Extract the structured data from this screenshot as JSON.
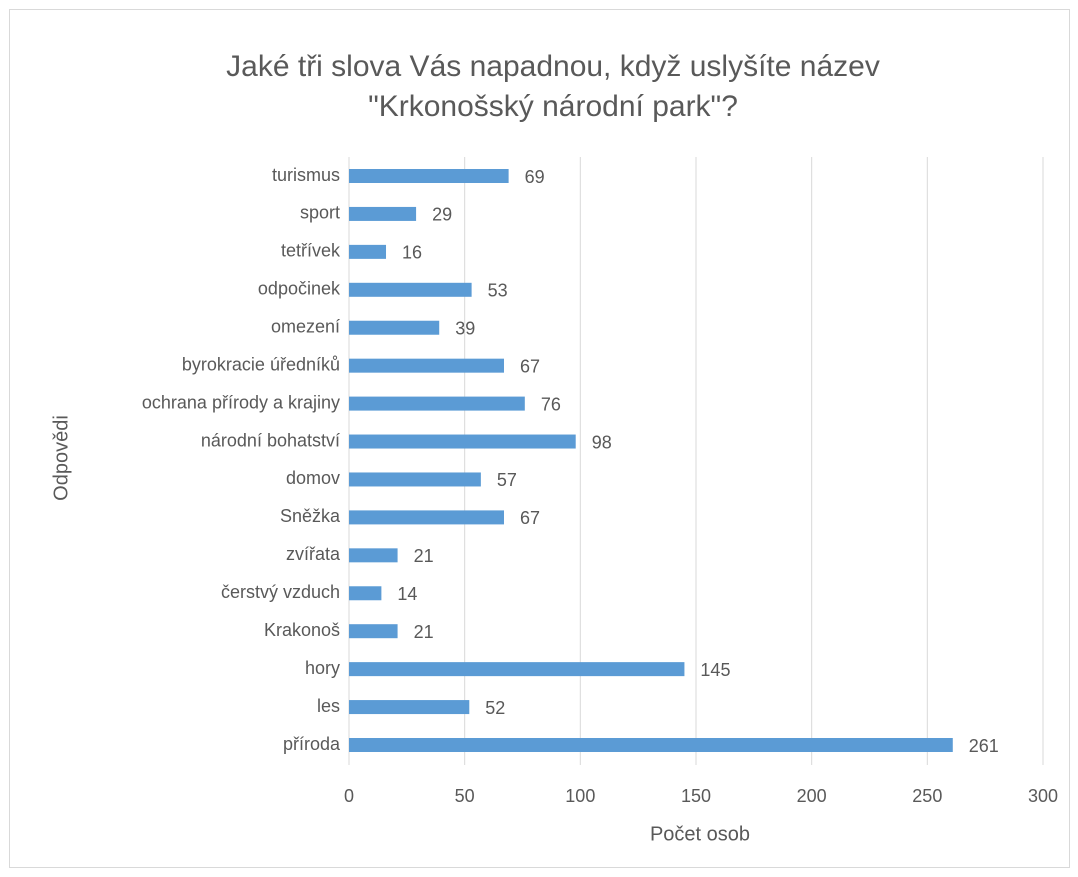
{
  "chart_data": {
    "type": "bar",
    "orientation": "horizontal",
    "title": [
      "Jaké tři slova Vás napadnou, když uslyšíte název",
      "\"Krkonošský národní park\"?"
    ],
    "x_label": "Počet osob",
    "y_label": "Odpovědi",
    "categories": [
      "turismus",
      "sport",
      "tetřívek",
      "odpočinek",
      "omezení",
      "byrokracie úředníků",
      "ochrana přírody a krajiny",
      "národní bohatství",
      "domov",
      "Sněžka",
      "zvířata",
      "čerstvý vzduch",
      "Krakonoš",
      "hory",
      "les",
      "příroda"
    ],
    "values": [
      69,
      29,
      16,
      53,
      39,
      67,
      76,
      98,
      57,
      67,
      21,
      14,
      21,
      145,
      52,
      261
    ],
    "color": "#5b9bd5",
    "xlim": [
      0,
      300
    ],
    "xticks": [
      0,
      50,
      100,
      150,
      200,
      250,
      300
    ],
    "grid": true
  }
}
